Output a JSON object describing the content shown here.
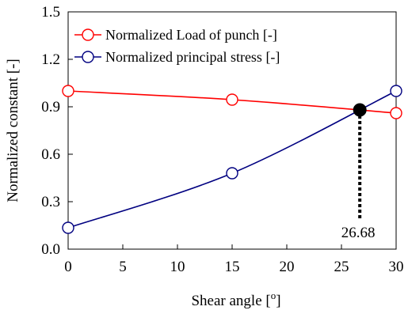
{
  "chart_data": {
    "type": "line",
    "xlabel": "Shear angle [",
    "xlabel_sup": "o",
    "xlabel_end": "]",
    "ylabel": "Normalized constant [-]",
    "xlim": [
      0,
      30
    ],
    "ylim": [
      0.0,
      1.5
    ],
    "xticks": [
      "0",
      "5",
      "10",
      "15",
      "20",
      "25",
      "30"
    ],
    "yticks": [
      "0.0",
      "0.3",
      "0.6",
      "0.9",
      "1.2",
      "1.5"
    ],
    "grid": false,
    "legend_position": "top-left",
    "series": [
      {
        "name": "Normalized Load of punch [-]",
        "color": "#ff0000",
        "x": [
          0,
          15,
          30
        ],
        "y": [
          1.0,
          0.945,
          0.86
        ]
      },
      {
        "name": "Normalized principal stress [-]",
        "color": "#000080",
        "x": [
          0,
          15,
          30
        ],
        "y": [
          0.135,
          0.48,
          1.0
        ]
      }
    ],
    "intersection": {
      "x": 26.68,
      "y": 0.88,
      "label": "26.68",
      "color": "#000000"
    }
  }
}
